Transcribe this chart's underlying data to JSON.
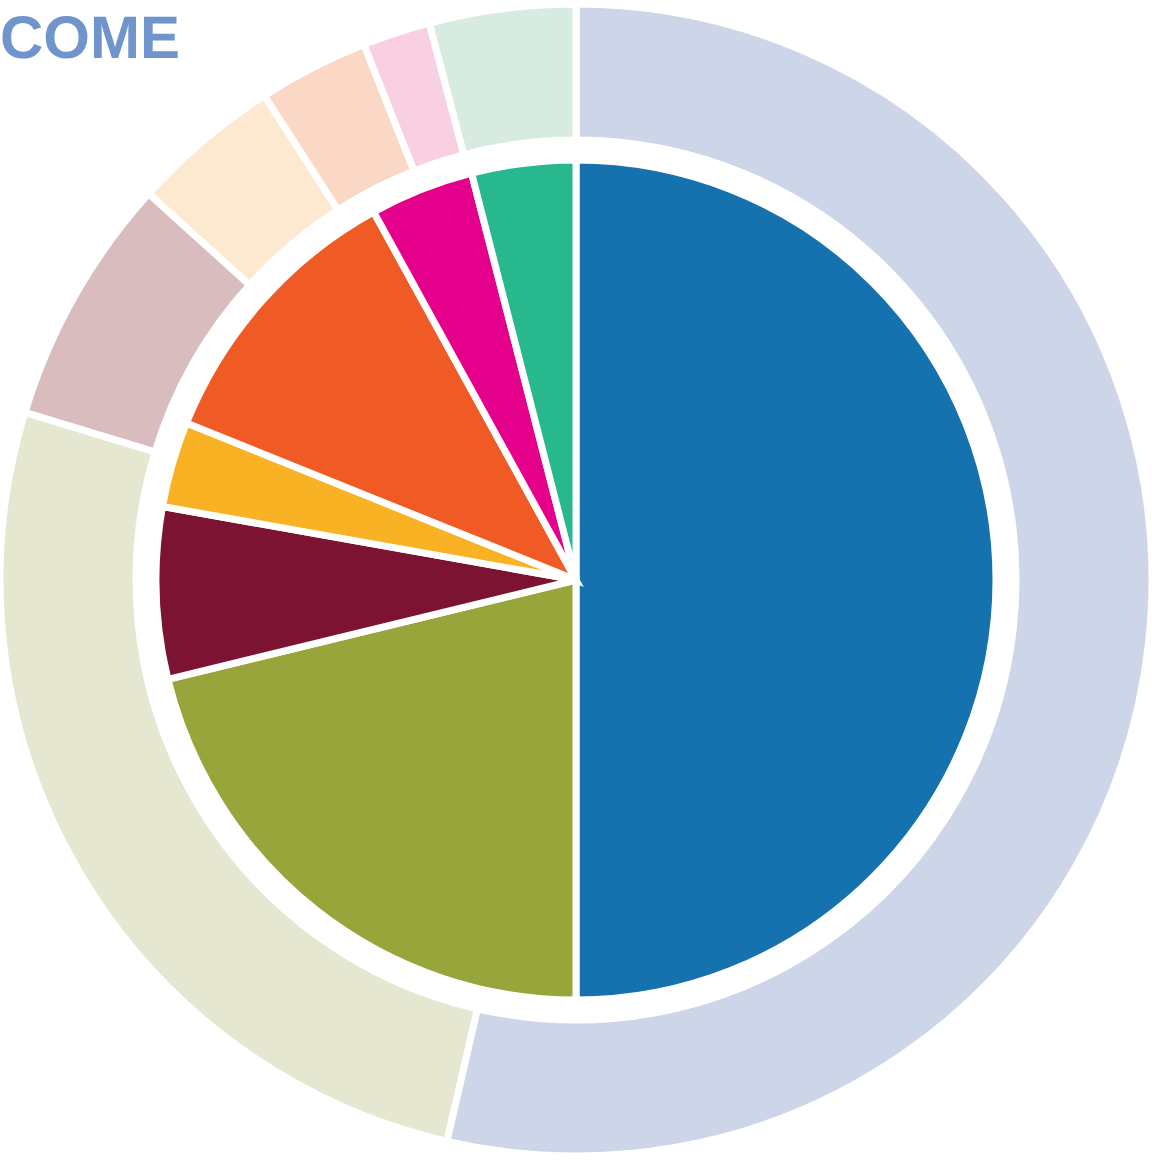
{
  "chart_data": {
    "type": "pie",
    "title": "COME",
    "categories": [
      null,
      null,
      null,
      null,
      null,
      null,
      null
    ],
    "series": [
      {
        "values": [
          50,
          21.2,
          6.6,
          3.3,
          10.9,
          4,
          4
        ],
        "colors": [
          "#1572ae",
          "#97a53a",
          "#7c1332",
          "#f8b223",
          "#f05a25",
          "#e5008c",
          "#27b88e"
        ]
      },
      {
        "type": "donut",
        "values": [
          53.6,
          26.1,
          7,
          4.2,
          3.1,
          1.9,
          4.1
        ],
        "colors": [
          "#cdd6e8",
          "#e5e7d1",
          "#d9bdbe",
          "#fde9cf",
          "#fbd8c5",
          "#f9d0e2",
          "#d8ebe0"
        ]
      }
    ]
  }
}
